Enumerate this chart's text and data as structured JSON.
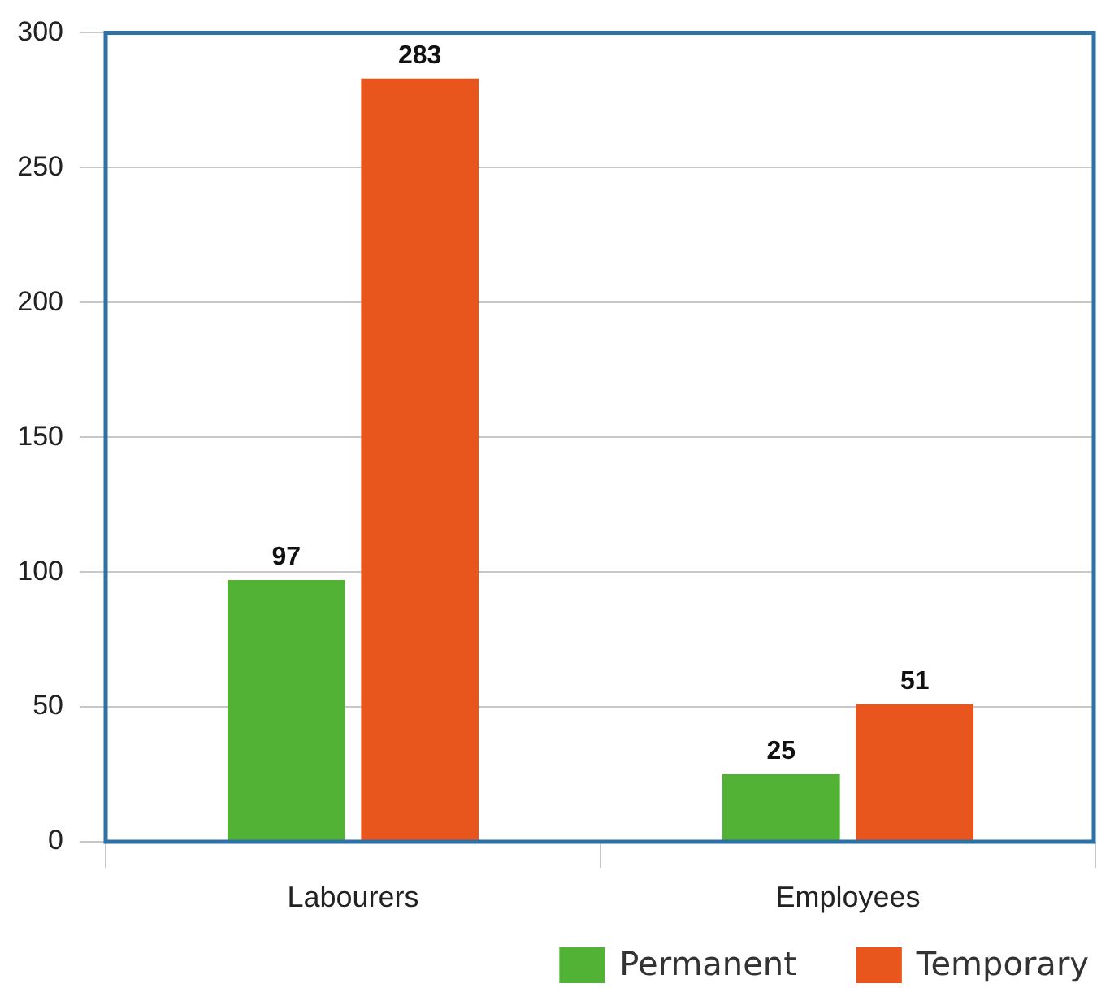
{
  "chart_data": {
    "type": "bar",
    "categories": [
      "Labourers",
      "Employees"
    ],
    "series": [
      {
        "name": "Permanent",
        "color": "#52b236",
        "values": [
          97,
          25
        ]
      },
      {
        "name": "Temporary",
        "color": "#e8561e",
        "values": [
          283,
          51
        ]
      }
    ],
    "ylim": [
      0,
      300
    ],
    "yticks": [
      0,
      50,
      100,
      150,
      200,
      250,
      300
    ],
    "grid": "y",
    "legend": "bottom right",
    "data_labels": true
  }
}
